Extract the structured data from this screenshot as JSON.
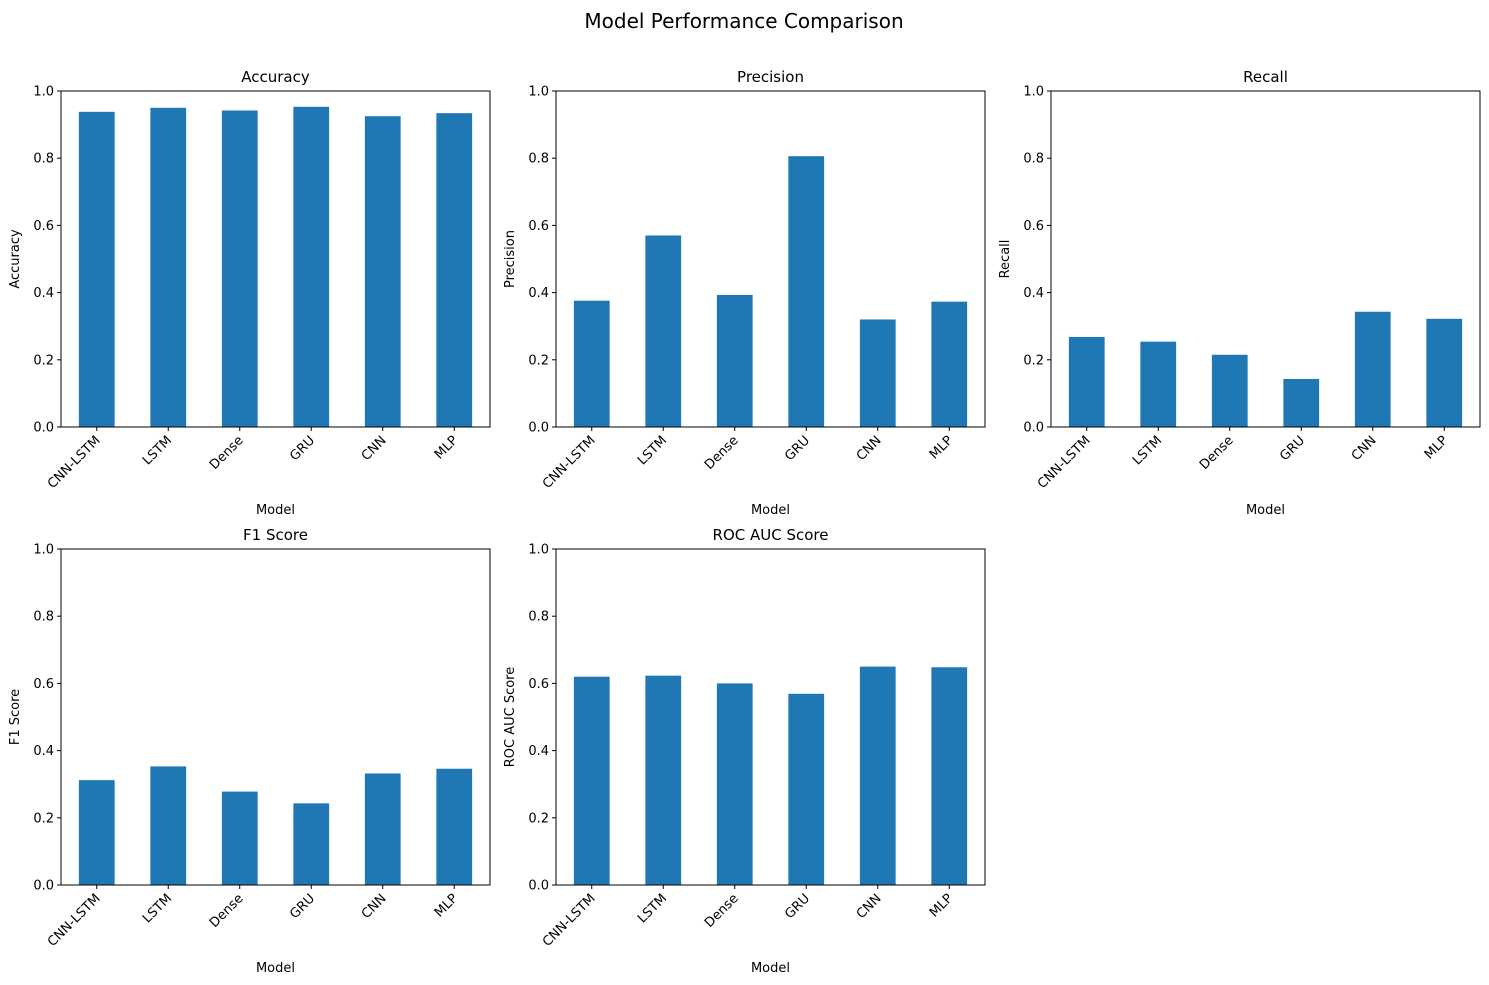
{
  "figure": {
    "suptitle": "Model Performance Comparison",
    "bar_color": "#1f77b4"
  },
  "chart_data": [
    {
      "type": "bar",
      "title": "Accuracy",
      "xlabel": "Model",
      "ylabel": "Accuracy",
      "ylim": [
        0,
        1
      ],
      "yticks": [
        "0.0",
        "0.2",
        "0.4",
        "0.6",
        "0.8",
        "1.0"
      ],
      "categories": [
        "CNN-LSTM",
        "LSTM",
        "Dense",
        "GRU",
        "CNN",
        "MLP"
      ],
      "values": [
        0.938,
        0.95,
        0.942,
        0.953,
        0.925,
        0.934
      ],
      "grid": false
    },
    {
      "type": "bar",
      "title": "Precision",
      "xlabel": "Model",
      "ylabel": "Precision",
      "ylim": [
        0,
        1
      ],
      "yticks": [
        "0.0",
        "0.2",
        "0.4",
        "0.6",
        "0.8",
        "1.0"
      ],
      "categories": [
        "CNN-LSTM",
        "LSTM",
        "Dense",
        "GRU",
        "CNN",
        "MLP"
      ],
      "values": [
        0.376,
        0.57,
        0.393,
        0.806,
        0.32,
        0.373
      ],
      "grid": false
    },
    {
      "type": "bar",
      "title": "Recall",
      "xlabel": "Model",
      "ylabel": "Recall",
      "ylim": [
        0,
        1
      ],
      "yticks": [
        "0.0",
        "0.2",
        "0.4",
        "0.6",
        "0.8",
        "1.0"
      ],
      "categories": [
        "CNN-LSTM",
        "LSTM",
        "Dense",
        "GRU",
        "CNN",
        "MLP"
      ],
      "values": [
        0.268,
        0.254,
        0.215,
        0.143,
        0.343,
        0.322
      ],
      "grid": false
    },
    {
      "type": "bar",
      "title": "F1 Score",
      "xlabel": "Model",
      "ylabel": "F1 Score",
      "ylim": [
        0,
        1
      ],
      "yticks": [
        "0.0",
        "0.2",
        "0.4",
        "0.6",
        "0.8",
        "1.0"
      ],
      "categories": [
        "CNN-LSTM",
        "LSTM",
        "Dense",
        "GRU",
        "CNN",
        "MLP"
      ],
      "values": [
        0.312,
        0.353,
        0.278,
        0.243,
        0.332,
        0.346
      ],
      "grid": false
    },
    {
      "type": "bar",
      "title": "ROC AUC Score",
      "xlabel": "Model",
      "ylabel": "ROC AUC Score",
      "ylim": [
        0,
        1
      ],
      "yticks": [
        "0.0",
        "0.2",
        "0.4",
        "0.6",
        "0.8",
        "1.0"
      ],
      "categories": [
        "CNN-LSTM",
        "LSTM",
        "Dense",
        "GRU",
        "CNN",
        "MLP"
      ],
      "values": [
        0.62,
        0.623,
        0.6,
        0.569,
        0.65,
        0.648
      ],
      "grid": false
    }
  ]
}
